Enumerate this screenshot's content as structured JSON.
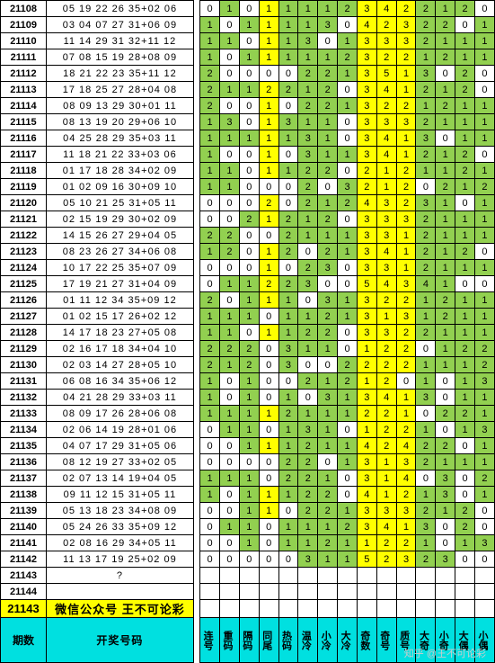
{
  "colors": {
    "green": "#92d050",
    "yellow": "#ffff00",
    "cyan": "#00e0e0",
    "border": "#000000",
    "text": "#000000"
  },
  "font": {
    "size": 11,
    "family": "Arial"
  },
  "headers": {
    "period": "期数",
    "lottery": "开奖号码",
    "cols": [
      "连号",
      "重码",
      "隔码",
      "同尾",
      "热码",
      "温冷",
      "小冷",
      "大冷",
      "奇数",
      "奇号",
      "质号",
      "大奇",
      "小奇",
      "大偶",
      "小偶"
    ]
  },
  "wechat_row": {
    "period": "21143",
    "text": "微信公众号 王不可论彩"
  },
  "empty_rows": [
    {
      "period": "21143",
      "lottery": "?"
    },
    {
      "period": "21144",
      "lottery": ""
    }
  ],
  "yellow_cols": [
    3,
    8,
    9,
    10
  ],
  "watermark": "知乎 @王不可论彩",
  "rows": [
    {
      "p": "21108",
      "l": "05 19 22 26 35+02 06",
      "v": [
        "0",
        "1",
        "0",
        "1",
        "1",
        "1",
        "1",
        "2",
        "3",
        "4",
        "2",
        "2",
        "1",
        "2",
        "0"
      ]
    },
    {
      "p": "21109",
      "l": "03 04 07 27 31+06 09",
      "v": [
        "1",
        "0",
        "1",
        "1",
        "1",
        "1",
        "3",
        "0",
        "4",
        "2",
        "3",
        "2",
        "2",
        "0",
        "1"
      ]
    },
    {
      "p": "21110",
      "l": "11 14 29 31 32+11 12",
      "v": [
        "1",
        "1",
        "0",
        "1",
        "1",
        "3",
        "0",
        "1",
        "3",
        "3",
        "3",
        "2",
        "1",
        "1",
        "1"
      ]
    },
    {
      "p": "21111",
      "l": "07 08 15 19 28+08 09",
      "v": [
        "1",
        "0",
        "1",
        "1",
        "1",
        "1",
        "1",
        "2",
        "3",
        "2",
        "2",
        "1",
        "2",
        "1",
        "1"
      ]
    },
    {
      "p": "21112",
      "l": "18 21 22 23 35+11 12",
      "v": [
        "2",
        "0",
        "0",
        "0",
        "0",
        "2",
        "2",
        "1",
        "3",
        "5",
        "1",
        "3",
        "0",
        "2",
        "0"
      ]
    },
    {
      "p": "21113",
      "l": "17 18 25 27 28+04 08",
      "v": [
        "2",
        "1",
        "1",
        "2",
        "2",
        "1",
        "2",
        "0",
        "3",
        "4",
        "1",
        "2",
        "1",
        "2",
        "0"
      ]
    },
    {
      "p": "21114",
      "l": "08 09 13 29 30+01 11",
      "v": [
        "2",
        "0",
        "0",
        "1",
        "0",
        "2",
        "2",
        "1",
        "3",
        "2",
        "2",
        "1",
        "2",
        "1",
        "1"
      ]
    },
    {
      "p": "21115",
      "l": "08 13 19 20 29+06 10",
      "v": [
        "1",
        "3",
        "0",
        "1",
        "3",
        "1",
        "1",
        "0",
        "3",
        "3",
        "3",
        "2",
        "1",
        "1",
        "1"
      ]
    },
    {
      "p": "21116",
      "l": "04 25 28 29 35+03 11",
      "v": [
        "1",
        "1",
        "1",
        "1",
        "1",
        "3",
        "1",
        "0",
        "3",
        "4",
        "1",
        "3",
        "0",
        "1",
        "1"
      ]
    },
    {
      "p": "21117",
      "l": "11 18 21 22 33+03 06",
      "v": [
        "1",
        "0",
        "0",
        "1",
        "0",
        "3",
        "1",
        "1",
        "3",
        "4",
        "1",
        "2",
        "1",
        "2",
        "0"
      ]
    },
    {
      "p": "21118",
      "l": "01 17 18 28 34+02 09",
      "v": [
        "1",
        "1",
        "0",
        "1",
        "1",
        "2",
        "2",
        "0",
        "2",
        "1",
        "2",
        "1",
        "1",
        "2",
        "1"
      ]
    },
    {
      "p": "21119",
      "l": "01 02 09 16 30+09 10",
      "v": [
        "1",
        "1",
        "0",
        "0",
        "0",
        "2",
        "0",
        "3",
        "2",
        "1",
        "2",
        "0",
        "2",
        "1",
        "2"
      ]
    },
    {
      "p": "21120",
      "l": "05 10 21 25 31+05 11",
      "v": [
        "0",
        "0",
        "0",
        "2",
        "0",
        "2",
        "1",
        "2",
        "4",
        "3",
        "2",
        "3",
        "1",
        "0",
        "1"
      ]
    },
    {
      "p": "21121",
      "l": "02 15 19 29 30+02 09",
      "v": [
        "0",
        "0",
        "2",
        "1",
        "2",
        "1",
        "2",
        "0",
        "3",
        "3",
        "3",
        "2",
        "1",
        "1",
        "1"
      ]
    },
    {
      "p": "21122",
      "l": "14 15 26 27 29+04 05",
      "v": [
        "2",
        "2",
        "0",
        "0",
        "2",
        "1",
        "1",
        "1",
        "3",
        "3",
        "1",
        "2",
        "1",
        "1",
        "1"
      ]
    },
    {
      "p": "21123",
      "l": "08 23 26 27 34+06 08",
      "v": [
        "1",
        "2",
        "0",
        "1",
        "2",
        "0",
        "2",
        "1",
        "3",
        "4",
        "1",
        "2",
        "1",
        "2",
        "0"
      ]
    },
    {
      "p": "21124",
      "l": "10 17 22 25 35+07 09",
      "v": [
        "0",
        "0",
        "0",
        "1",
        "0",
        "2",
        "3",
        "0",
        "3",
        "3",
        "1",
        "2",
        "1",
        "1",
        "1"
      ]
    },
    {
      "p": "21125",
      "l": "17 19 21 27 31+04 09",
      "v": [
        "0",
        "1",
        "1",
        "2",
        "2",
        "3",
        "0",
        "0",
        "5",
        "4",
        "3",
        "4",
        "1",
        "0",
        "0"
      ]
    },
    {
      "p": "21126",
      "l": "01 11 12 34 35+09 12",
      "v": [
        "2",
        "0",
        "1",
        "1",
        "1",
        "0",
        "3",
        "1",
        "3",
        "2",
        "2",
        "1",
        "2",
        "1",
        "1"
      ]
    },
    {
      "p": "21127",
      "l": "01 02 15 17 26+02 12",
      "v": [
        "1",
        "1",
        "1",
        "0",
        "1",
        "1",
        "2",
        "1",
        "3",
        "1",
        "3",
        "1",
        "2",
        "1",
        "1"
      ]
    },
    {
      "p": "21128",
      "l": "14 17 18 23 27+05 08",
      "v": [
        "1",
        "1",
        "0",
        "1",
        "1",
        "2",
        "2",
        "0",
        "3",
        "3",
        "2",
        "2",
        "1",
        "1",
        "1"
      ]
    },
    {
      "p": "21129",
      "l": "02 16 17 18 34+04 10",
      "v": [
        "2",
        "2",
        "2",
        "0",
        "3",
        "1",
        "1",
        "0",
        "1",
        "2",
        "2",
        "0",
        "1",
        "2",
        "2"
      ]
    },
    {
      "p": "21130",
      "l": "02 03 14 27 28+05 10",
      "v": [
        "2",
        "1",
        "2",
        "0",
        "3",
        "0",
        "0",
        "2",
        "2",
        "2",
        "2",
        "1",
        "1",
        "1",
        "2"
      ]
    },
    {
      "p": "21131",
      "l": "06 08 16 34 35+06 12",
      "v": [
        "1",
        "0",
        "1",
        "0",
        "0",
        "2",
        "1",
        "2",
        "1",
        "2",
        "0",
        "1",
        "0",
        "1",
        "3"
      ]
    },
    {
      "p": "21132",
      "l": "04 21 28 29 33+03 11",
      "v": [
        "1",
        "0",
        "1",
        "0",
        "1",
        "0",
        "3",
        "1",
        "3",
        "4",
        "1",
        "3",
        "0",
        "1",
        "1"
      ]
    },
    {
      "p": "21133",
      "l": "08 09 17 26 28+06 08",
      "v": [
        "1",
        "1",
        "1",
        "1",
        "2",
        "1",
        "1",
        "1",
        "2",
        "2",
        "1",
        "0",
        "2",
        "2",
        "1"
      ]
    },
    {
      "p": "21134",
      "l": "02 06 14 19 28+01 06",
      "v": [
        "0",
        "1",
        "1",
        "0",
        "1",
        "3",
        "1",
        "0",
        "1",
        "2",
        "2",
        "1",
        "0",
        "1",
        "3"
      ]
    },
    {
      "p": "21135",
      "l": "04 07 17 29 31+05 06",
      "v": [
        "0",
        "0",
        "1",
        "1",
        "1",
        "2",
        "1",
        "1",
        "4",
        "2",
        "4",
        "2",
        "2",
        "0",
        "1"
      ]
    },
    {
      "p": "21136",
      "l": "08 12 19 27 33+02 05",
      "v": [
        "0",
        "0",
        "0",
        "0",
        "2",
        "2",
        "0",
        "1",
        "3",
        "1",
        "3",
        "2",
        "1",
        "1",
        "1"
      ]
    },
    {
      "p": "21137",
      "l": "02 07 13 14 19+04 05",
      "v": [
        "1",
        "1",
        "1",
        "0",
        "2",
        "2",
        "1",
        "0",
        "3",
        "1",
        "4",
        "0",
        "3",
        "0",
        "2"
      ]
    },
    {
      "p": "21138",
      "l": "09 11 12 15 31+05 11",
      "v": [
        "1",
        "0",
        "1",
        "1",
        "1",
        "2",
        "2",
        "0",
        "4",
        "1",
        "2",
        "1",
        "3",
        "0",
        "1"
      ]
    },
    {
      "p": "21139",
      "l": "05 13 18 23 34+08 09",
      "v": [
        "0",
        "0",
        "1",
        "1",
        "0",
        "2",
        "2",
        "1",
        "3",
        "3",
        "3",
        "2",
        "1",
        "2",
        "0"
      ]
    },
    {
      "p": "21140",
      "l": "05 24 26 33 35+09 12",
      "v": [
        "0",
        "1",
        "1",
        "0",
        "1",
        "1",
        "1",
        "2",
        "3",
        "4",
        "1",
        "3",
        "0",
        "2",
        "0"
      ]
    },
    {
      "p": "21141",
      "l": "02 08 16 29 34+05 11",
      "v": [
        "0",
        "0",
        "1",
        "0",
        "1",
        "1",
        "2",
        "1",
        "1",
        "2",
        "2",
        "1",
        "0",
        "1",
        "3"
      ]
    },
    {
      "p": "21142",
      "l": "11 13 17 19 25+02 09",
      "v": [
        "0",
        "0",
        "0",
        "0",
        "0",
        "3",
        "1",
        "1",
        "5",
        "2",
        "3",
        "2",
        "3",
        "0",
        "0"
      ]
    }
  ]
}
